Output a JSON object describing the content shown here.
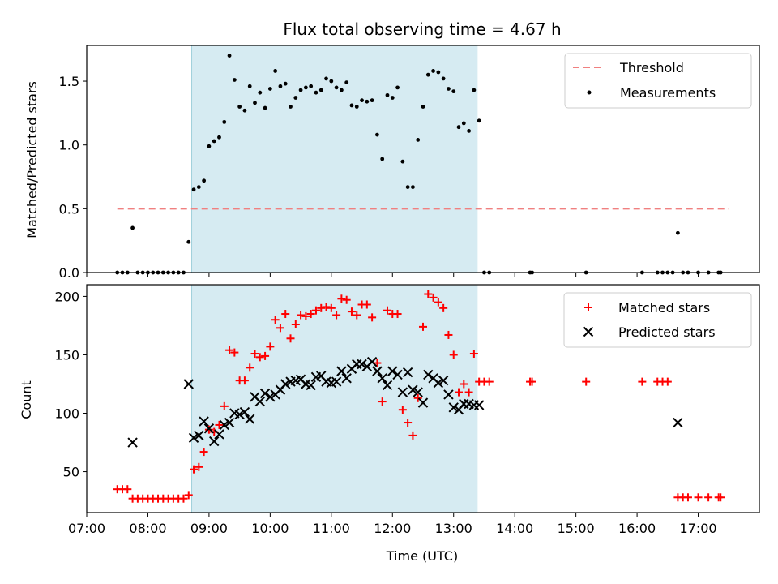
{
  "colors": {
    "measurement": "#000000",
    "threshold": "#f08080",
    "observing_span": "#add8e6",
    "matched": "#ff0000",
    "predicted": "#000000"
  },
  "chart_data": [
    {
      "type": "scatter",
      "title": "Flux total observing time = 4.67 h",
      "xlabel": "",
      "ylabel": "Matched/Predicted stars",
      "xlim": [
        "07:00",
        "18:00"
      ],
      "ylim": [
        0,
        1.78
      ],
      "yticks": [
        0.0,
        0.5,
        1.0,
        1.5
      ],
      "ytick_labels": [
        "0.0",
        "0.5",
        "1.0",
        "1.5"
      ],
      "shaded_span": [
        "08:43",
        "13:23"
      ],
      "legend_position": "top-right",
      "threshold": {
        "name": "Threshold",
        "value": 0.5,
        "x": [
          "07:30",
          "17:30"
        ],
        "style": "dashed"
      },
      "series": [
        {
          "name": "Measurements",
          "marker": "dot",
          "points": [
            [
              "07:30",
              0
            ],
            [
              "07:35",
              0
            ],
            [
              "07:40",
              0
            ],
            [
              "07:45",
              0.35
            ],
            [
              "07:50",
              0
            ],
            [
              "07:55",
              0
            ],
            [
              "08:00",
              0
            ],
            [
              "08:05",
              0
            ],
            [
              "08:10",
              0
            ],
            [
              "08:15",
              0
            ],
            [
              "08:20",
              0
            ],
            [
              "08:25",
              0
            ],
            [
              "08:30",
              0
            ],
            [
              "08:35",
              0
            ],
            [
              "08:40",
              0.24
            ],
            [
              "08:45",
              0.65
            ],
            [
              "08:50",
              0.67
            ],
            [
              "08:55",
              0.72
            ],
            [
              "09:00",
              0.99
            ],
            [
              "09:05",
              1.03
            ],
            [
              "09:10",
              1.06
            ],
            [
              "09:15",
              1.18
            ],
            [
              "09:20",
              1.7
            ],
            [
              "09:25",
              1.51
            ],
            [
              "09:30",
              1.3
            ],
            [
              "09:35",
              1.27
            ],
            [
              "09:40",
              1.46
            ],
            [
              "09:45",
              1.33
            ],
            [
              "09:50",
              1.41
            ],
            [
              "09:55",
              1.29
            ],
            [
              "10:00",
              1.44
            ],
            [
              "10:05",
              1.58
            ],
            [
              "10:10",
              1.46
            ],
            [
              "10:15",
              1.48
            ],
            [
              "10:20",
              1.3
            ],
            [
              "10:25",
              1.37
            ],
            [
              "10:30",
              1.43
            ],
            [
              "10:35",
              1.45
            ],
            [
              "10:40",
              1.46
            ],
            [
              "10:45",
              1.41
            ],
            [
              "10:50",
              1.43
            ],
            [
              "10:55",
              1.52
            ],
            [
              "11:00",
              1.5
            ],
            [
              "11:05",
              1.45
            ],
            [
              "11:10",
              1.43
            ],
            [
              "11:15",
              1.49
            ],
            [
              "11:20",
              1.31
            ],
            [
              "11:25",
              1.3
            ],
            [
              "11:30",
              1.35
            ],
            [
              "11:35",
              1.34
            ],
            [
              "11:40",
              1.35
            ],
            [
              "11:45",
              1.08
            ],
            [
              "11:50",
              0.89
            ],
            [
              "11:55",
              1.39
            ],
            [
              "12:00",
              1.37
            ],
            [
              "12:05",
              1.45
            ],
            [
              "12:10",
              0.87
            ],
            [
              "12:15",
              0.67
            ],
            [
              "12:20",
              0.67
            ],
            [
              "12:25",
              1.04
            ],
            [
              "12:30",
              1.3
            ],
            [
              "12:35",
              1.55
            ],
            [
              "12:40",
              1.58
            ],
            [
              "12:45",
              1.57
            ],
            [
              "12:50",
              1.52
            ],
            [
              "12:55",
              1.44
            ],
            [
              "13:00",
              1.42
            ],
            [
              "13:05",
              1.14
            ],
            [
              "13:10",
              1.17
            ],
            [
              "13:15",
              1.11
            ],
            [
              "13:20",
              1.43
            ],
            [
              "13:25",
              1.19
            ],
            [
              "13:30",
              0
            ],
            [
              "13:35",
              0
            ],
            [
              "14:15",
              0
            ],
            [
              "14:17",
              0
            ],
            [
              "15:10",
              0
            ],
            [
              "16:05",
              0
            ],
            [
              "16:20",
              0
            ],
            [
              "16:25",
              0
            ],
            [
              "16:30",
              0
            ],
            [
              "16:35",
              0
            ],
            [
              "16:40",
              0.31
            ],
            [
              "16:45",
              0
            ],
            [
              "16:50",
              0
            ],
            [
              "17:00",
              0
            ],
            [
              "17:10",
              0
            ],
            [
              "17:20",
              0
            ],
            [
              "17:22",
              0
            ]
          ]
        }
      ]
    },
    {
      "type": "scatter",
      "title": "",
      "xlabel": "Time (UTC)",
      "ylabel": "Count",
      "xlim": [
        "07:00",
        "18:00"
      ],
      "ylim": [
        15,
        210
      ],
      "yticks": [
        50,
        100,
        150,
        200
      ],
      "ytick_labels": [
        "50",
        "100",
        "150",
        "200"
      ],
      "xticks": [
        "07:00",
        "08:00",
        "09:00",
        "10:00",
        "11:00",
        "12:00",
        "13:00",
        "14:00",
        "15:00",
        "16:00",
        "17:00"
      ],
      "xtick_labels": [
        "07:00",
        "08:00",
        "09:00",
        "10:00",
        "11:00",
        "12:00",
        "13:00",
        "14:00",
        "15:00",
        "16:00",
        "17:00"
      ],
      "shaded_span": [
        "08:43",
        "13:23"
      ],
      "legend_position": "top-right",
      "series": [
        {
          "name": "Matched stars",
          "marker": "plus",
          "points": [
            [
              "07:30",
              35
            ],
            [
              "07:35",
              35
            ],
            [
              "07:40",
              35
            ],
            [
              "07:45",
              27
            ],
            [
              "07:50",
              27
            ],
            [
              "07:55",
              27
            ],
            [
              "08:00",
              27
            ],
            [
              "08:05",
              27
            ],
            [
              "08:10",
              27
            ],
            [
              "08:15",
              27
            ],
            [
              "08:20",
              27
            ],
            [
              "08:25",
              27
            ],
            [
              "08:30",
              27
            ],
            [
              "08:35",
              27
            ],
            [
              "08:40",
              30
            ],
            [
              "08:45",
              52
            ],
            [
              "08:50",
              54
            ],
            [
              "08:55",
              67
            ],
            [
              "09:00",
              86
            ],
            [
              "09:05",
              84
            ],
            [
              "09:10",
              90
            ],
            [
              "09:15",
              106
            ],
            [
              "09:20",
              154
            ],
            [
              "09:25",
              152
            ],
            [
              "09:30",
              128
            ],
            [
              "09:35",
              128
            ],
            [
              "09:40",
              139
            ],
            [
              "09:45",
              151
            ],
            [
              "09:50",
              148
            ],
            [
              "09:55",
              149
            ],
            [
              "10:00",
              157
            ],
            [
              "10:05",
              180
            ],
            [
              "10:10",
              173
            ],
            [
              "10:15",
              185
            ],
            [
              "10:20",
              164
            ],
            [
              "10:25",
              176
            ],
            [
              "10:30",
              184
            ],
            [
              "10:35",
              183
            ],
            [
              "10:40",
              185
            ],
            [
              "10:45",
              188
            ],
            [
              "10:50",
              190
            ],
            [
              "10:55",
              191
            ],
            [
              "11:00",
              190
            ],
            [
              "11:05",
              184
            ],
            [
              "11:10",
              198
            ],
            [
              "11:15",
              197
            ],
            [
              "11:20",
              187
            ],
            [
              "11:25",
              184
            ],
            [
              "11:30",
              193
            ],
            [
              "11:35",
              193
            ],
            [
              "11:40",
              182
            ],
            [
              "11:45",
              143
            ],
            [
              "11:50",
              110
            ],
            [
              "11:55",
              188
            ],
            [
              "12:00",
              185
            ],
            [
              "12:05",
              185
            ],
            [
              "12:10",
              103
            ],
            [
              "12:15",
              92
            ],
            [
              "12:20",
              81
            ],
            [
              "12:25",
              113
            ],
            [
              "12:30",
              174
            ],
            [
              "12:35",
              202
            ],
            [
              "12:40",
              199
            ],
            [
              "12:45",
              195
            ],
            [
              "12:50",
              190
            ],
            [
              "12:55",
              167
            ],
            [
              "13:00",
              150
            ],
            [
              "13:05",
              118
            ],
            [
              "13:10",
              125
            ],
            [
              "13:15",
              118
            ],
            [
              "13:20",
              151
            ],
            [
              "13:25",
              127
            ],
            [
              "13:30",
              127
            ],
            [
              "13:35",
              127
            ],
            [
              "14:15",
              127
            ],
            [
              "14:17",
              127
            ],
            [
              "15:10",
              127
            ],
            [
              "16:05",
              127
            ],
            [
              "16:20",
              127
            ],
            [
              "16:25",
              127
            ],
            [
              "16:30",
              127
            ],
            [
              "16:40",
              28
            ],
            [
              "16:45",
              28
            ],
            [
              "16:50",
              28
            ],
            [
              "17:00",
              28
            ],
            [
              "17:10",
              28
            ],
            [
              "17:20",
              28
            ],
            [
              "17:22",
              28
            ]
          ]
        },
        {
          "name": "Predicted stars",
          "marker": "x",
          "points": [
            [
              "07:45",
              75
            ],
            [
              "08:40",
              125
            ],
            [
              "08:45",
              79
            ],
            [
              "08:50",
              81
            ],
            [
              "08:55",
              93
            ],
            [
              "09:00",
              87
            ],
            [
              "09:05",
              76
            ],
            [
              "09:10",
              82
            ],
            [
              "09:15",
              90
            ],
            [
              "09:20",
              92
            ],
            [
              "09:25",
              100
            ],
            [
              "09:30",
              99
            ],
            [
              "09:35",
              101
            ],
            [
              "09:40",
              95
            ],
            [
              "09:45",
              114
            ],
            [
              "09:50",
              110
            ],
            [
              "09:55",
              117
            ],
            [
              "10:00",
              114
            ],
            [
              "10:05",
              116
            ],
            [
              "10:10",
              120
            ],
            [
              "10:15",
              125
            ],
            [
              "10:20",
              127
            ],
            [
              "10:25",
              128
            ],
            [
              "10:30",
              129
            ],
            [
              "10:35",
              125
            ],
            [
              "10:40",
              124
            ],
            [
              "10:45",
              131
            ],
            [
              "10:50",
              132
            ],
            [
              "10:55",
              127
            ],
            [
              "11:00",
              126
            ],
            [
              "11:05",
              127
            ],
            [
              "11:10",
              136
            ],
            [
              "11:15",
              130
            ],
            [
              "11:20",
              138
            ],
            [
              "11:25",
              142
            ],
            [
              "11:30",
              142
            ],
            [
              "11:35",
              140
            ],
            [
              "11:40",
              144
            ],
            [
              "11:45",
              136
            ],
            [
              "11:50",
              130
            ],
            [
              "11:55",
              124
            ],
            [
              "12:00",
              136
            ],
            [
              "12:05",
              133
            ],
            [
              "12:10",
              118
            ],
            [
              "12:15",
              135
            ],
            [
              "12:20",
              120
            ],
            [
              "12:25",
              118
            ],
            [
              "12:30",
              109
            ],
            [
              "12:35",
              133
            ],
            [
              "12:40",
              130
            ],
            [
              "12:45",
              126
            ],
            [
              "12:50",
              128
            ],
            [
              "12:55",
              116
            ],
            [
              "13:00",
              105
            ],
            [
              "13:05",
              103
            ],
            [
              "13:10",
              108
            ],
            [
              "13:15",
              108
            ],
            [
              "13:20",
              107
            ],
            [
              "13:25",
              107
            ],
            [
              "16:40",
              92
            ]
          ]
        }
      ]
    }
  ]
}
